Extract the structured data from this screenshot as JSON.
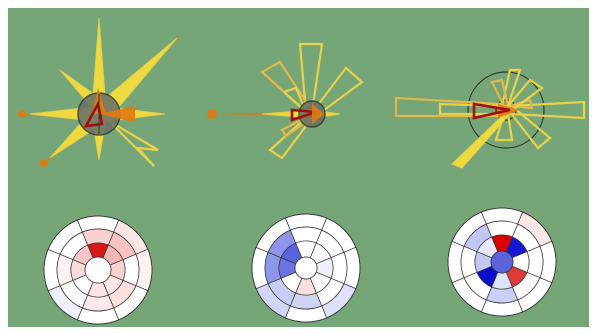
{
  "canvas": {
    "background": "#76a577",
    "frame": "#ffffff"
  },
  "palette": {
    "star_fill": "#f6df3c",
    "star_outline": "#e8d24a",
    "hollow_gold": "#e0b94a",
    "orange": "#e07a10",
    "dark_red": "#a01010",
    "ring_dark": "#2f3a2f",
    "hub_gray": "#666f66",
    "grid_line": "#333333"
  },
  "wind_roses": [
    {
      "id": "rose-1",
      "hub": "filled",
      "description_tag": "filled-star-rose"
    },
    {
      "id": "rose-2",
      "hub": "small",
      "description_tag": "outlined-star-rose"
    },
    {
      "id": "rose-3",
      "hub": "ring",
      "description_tag": "outlined-bar-rose"
    }
  ],
  "polar_heatmaps": [
    {
      "id": "heatmap-1",
      "scheme": "red-dominant",
      "rings": [
        [
          "#ffffff",
          "#fbe6e6",
          "#fdf2f2",
          "#ffffff",
          "#ffffff",
          "#eef0fb",
          "#ffffff",
          "#ffffff"
        ],
        [
          "#fad1d1",
          "#f6c2c2",
          "#ffffff",
          "#fbe0e0",
          "#fde9e9",
          "#ffffff",
          "#fdf2f2",
          "#ffffff"
        ],
        [
          "#d81818",
          "#f3b6b6",
          "#f8d2d2",
          "#fce6e6",
          "#fde4e4",
          "#ffffff",
          "#fbdada",
          "#f6c6c6"
        ]
      ]
    },
    {
      "id": "heatmap-2",
      "scheme": "blue-dominant",
      "rings": [
        [
          "#ffffff",
          "#ffffff",
          "#ffffff",
          "#dfe1f8",
          "#ffffff",
          "#d2d6f6",
          "#ffffff",
          "#ffffff"
        ],
        [
          "#ffffff",
          "#ffffff",
          "#ffffff",
          "#ffffff",
          "#cfd3f5",
          "#c8cdf4",
          "#8f96e8",
          "#8e95ea"
        ],
        [
          "#ffffff",
          "#ffffff",
          "#eef0fb",
          "#ffffff",
          "#fbdede",
          "#ffffff",
          "#6a73e0",
          "#5a63dc"
        ]
      ]
    },
    {
      "id": "heatmap-3",
      "scheme": "blue-red-mixed",
      "rings": [
        [
          "#ffffff",
          "#fde8e8",
          "#ffffff",
          "#ffffff",
          "#ffffff",
          "#ffffff",
          "#ffffff",
          "#ffffff"
        ],
        [
          "#ffffff",
          "#ffffff",
          "#ffffff",
          "#ffffff",
          "#c9cef5",
          "#ffffff",
          "#ffffff",
          "#c2c7f2"
        ],
        [
          "#d80000",
          "#1717d6",
          "#ffffff",
          "#e03a3a",
          "#dfe3fa",
          "#0d0dcc",
          "#c2c7f4",
          "#e7e9fb"
        ]
      ]
    }
  ]
}
